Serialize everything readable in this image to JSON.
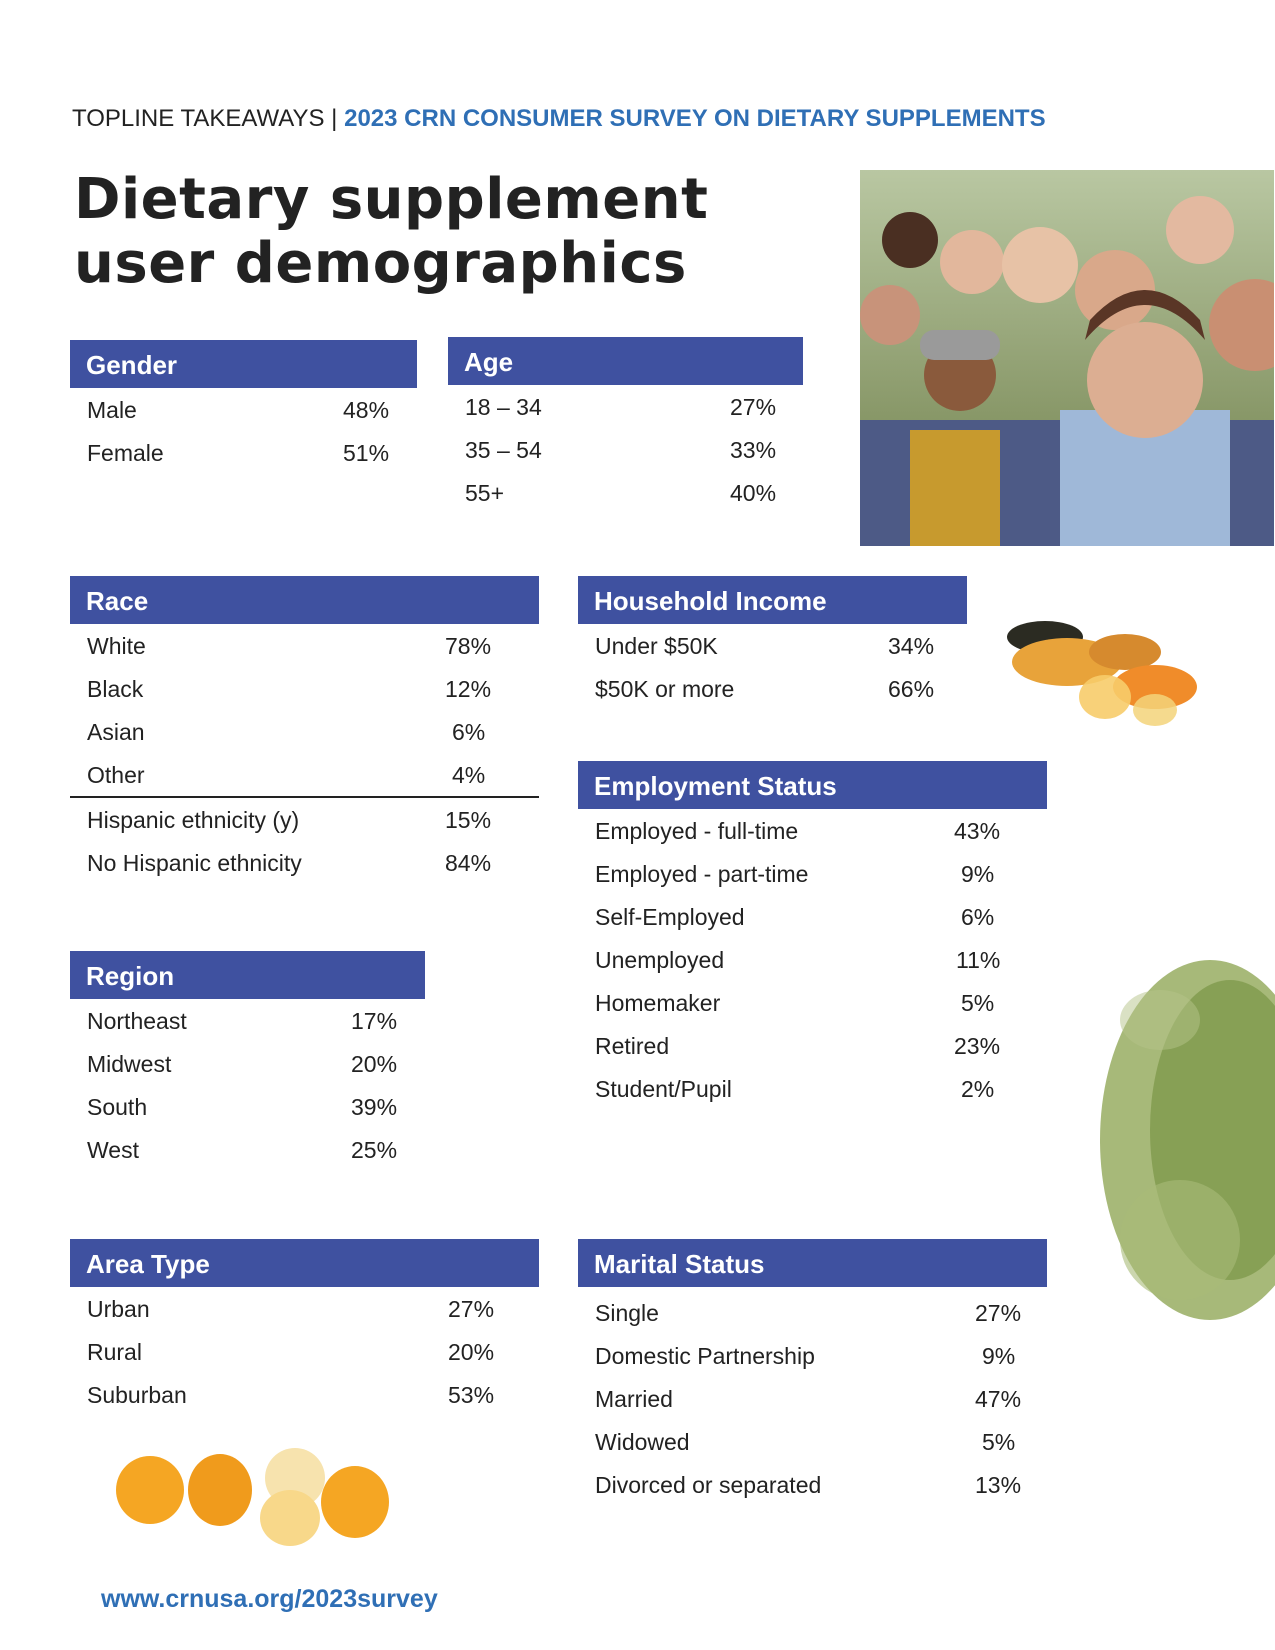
{
  "header": {
    "eyebrow_prefix": "TOPLINE TAKEAWAYS |",
    "eyebrow_accent": "2023 CRN CONSUMER SURVEY ON DIETARY SUPPLEMENTS",
    "title_line1": "Dietary supplement",
    "title_line2": "user demographics"
  },
  "gender": {
    "title": "Gender",
    "rows": [
      {
        "label": "Male",
        "value": "48%"
      },
      {
        "label": "Female",
        "value": "51%"
      }
    ]
  },
  "age": {
    "title": "Age",
    "rows": [
      {
        "label": "18 – 34",
        "value": "27%"
      },
      {
        "label": "35 – 54",
        "value": "33%"
      },
      {
        "label": "55+",
        "value": "40%"
      }
    ]
  },
  "race": {
    "title": "Race",
    "rows": [
      {
        "label": "White",
        "value": "78%"
      },
      {
        "label": "Black",
        "value": "12%"
      },
      {
        "label": "Asian",
        "value": "6%"
      },
      {
        "label": "Other",
        "value": "4%"
      }
    ],
    "ethnicity_rows": [
      {
        "label": "Hispanic ethnicity (y)",
        "value": "15%"
      },
      {
        "label": "No Hispanic ethnicity",
        "value": "84%"
      }
    ]
  },
  "income": {
    "title": "Household Income",
    "rows": [
      {
        "label": "Under $50K",
        "value": "34%"
      },
      {
        "label": "$50K or more",
        "value": "66%"
      }
    ]
  },
  "employment": {
    "title": "Employment Status",
    "rows": [
      {
        "label": "Employed - full-time",
        "value": "43%"
      },
      {
        "label": "Employed - part-time",
        "value": "9%"
      },
      {
        "label": "Self-Employed",
        "value": "6%"
      },
      {
        "label": "Unemployed",
        "value": "11%"
      },
      {
        "label": "Homemaker",
        "value": "5%"
      },
      {
        "label": "Retired",
        "value": "23%"
      },
      {
        "label": "Student/Pupil",
        "value": "2%"
      }
    ]
  },
  "region": {
    "title": "Region",
    "rows": [
      {
        "label": "Northeast",
        "value": "17%"
      },
      {
        "label": "Midwest",
        "value": "20%"
      },
      {
        "label": "South",
        "value": "39%"
      },
      {
        "label": "West",
        "value": "25%"
      }
    ]
  },
  "area": {
    "title": "Area Type",
    "rows": [
      {
        "label": "Urban",
        "value": "27%"
      },
      {
        "label": "Rural",
        "value": "20%"
      },
      {
        "label": "Suburban",
        "value": "53%"
      }
    ]
  },
  "marital": {
    "title": "Marital Status",
    "rows": [
      {
        "label": "Single",
        "value": "27%"
      },
      {
        "label": "Domestic Partnership",
        "value": "9%"
      },
      {
        "label": "Married",
        "value": "47%"
      },
      {
        "label": "Widowed",
        "value": "5%"
      },
      {
        "label": "Divorced or separated",
        "value": "13%"
      }
    ]
  },
  "footer": {
    "url": "www.crnusa.org/2023survey"
  },
  "colors": {
    "header_bar": "#3f51a0",
    "accent_blue": "#2f6fb5",
    "text": "#222222"
  }
}
